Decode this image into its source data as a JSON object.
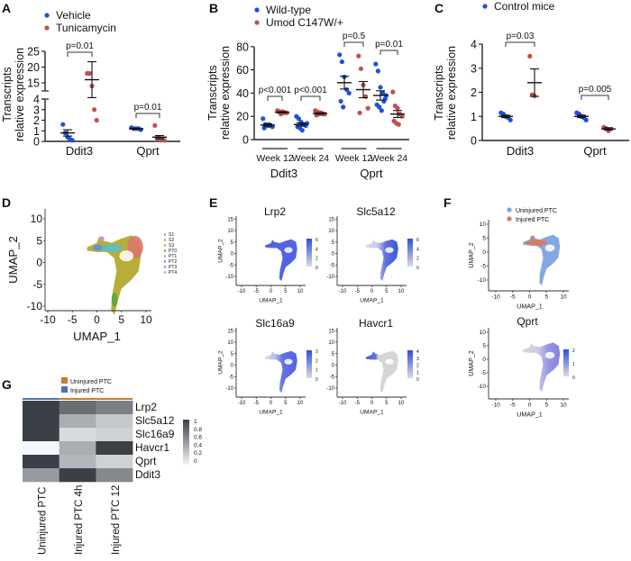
{
  "figure": {
    "panel_labels": [
      "A",
      "B",
      "C",
      "D",
      "E",
      "F",
      "G"
    ],
    "colors": {
      "blue": "#1f4fe0",
      "red": "#c0504d",
      "axis": "#222222"
    }
  },
  "chart_data": [
    {
      "panel": "A",
      "type": "scatter",
      "ylabel": [
        "Transcripts",
        "relative expression"
      ],
      "yticks": [
        0,
        1,
        2,
        3,
        4,
        15,
        20,
        25
      ],
      "axis_break": [
        4,
        12.5
      ],
      "categories": [
        "Ddit3",
        "Qprt"
      ],
      "series": [
        {
          "name": "Vehicle",
          "color": "#1f4fe0",
          "values": [
            [
              1.6,
              0.8,
              0.4,
              0.2,
              0.1
            ],
            [
              1.3,
              1.2,
              1.2,
              1.2,
              1.1
            ]
          ],
          "mean": [
            0.8,
            1.2
          ],
          "sem": [
            0.3,
            0.05
          ]
        },
        {
          "name": "Tunicamycin",
          "color": "#c0504d",
          "values": [
            [
              18,
              18,
              14,
              3,
              2
            ],
            [
              1.5,
              0.3,
              0.2,
              0.2,
              0.1
            ]
          ],
          "mean": [
            16,
            0.4
          ],
          "sem": [
            5.7,
            0.15
          ]
        }
      ],
      "pvalues": [
        "p=0.01",
        "p=0.01"
      ]
    },
    {
      "panel": "B",
      "type": "scatter",
      "ylabel": [
        "Transcripts",
        "relative expression"
      ],
      "yticks": [
        0,
        20,
        40,
        60,
        80
      ],
      "ylim": [
        0,
        80
      ],
      "categories": [
        "Ddit3",
        "Qprt"
      ],
      "subcategories": [
        "Week 12",
        "Week 24",
        "Week 12",
        "Week 24"
      ],
      "series": [
        {
          "name": "Wild-type",
          "color": "#1f4fe0",
          "values": [
            [
              18,
              13,
              12,
              12,
              11,
              10,
              12,
              13
            ],
            [
              20,
              18,
              15,
              13,
              12,
              11,
              10,
              8,
              13,
              14
            ],
            [
              73,
              67,
              54,
              43,
              40,
              33,
              28
            ],
            [
              65,
              59,
              45,
              40,
              35,
              30,
              28,
              25,
              33,
              38
            ]
          ],
          "mean": [
            12.5,
            13,
            49,
            38
          ],
          "sem": [
            1,
            1.3,
            5.5,
            4
          ]
        },
        {
          "name": "Umod C147W/+",
          "color": "#c0504d",
          "values": [
            [
              25,
              24,
              24,
              23,
              23,
              24,
              22,
              24
            ],
            [
              25,
              24,
              23,
              22,
              22,
              21,
              22,
              23
            ],
            [
              72,
              61,
              47,
              37,
              27,
              23
            ],
            [
              41,
              29,
              27,
              22,
              20,
              16,
              14,
              13
            ]
          ],
          "mean": [
            23.5,
            22.5,
            43,
            22
          ],
          "sem": [
            0.5,
            0.6,
            7,
            3
          ]
        }
      ],
      "pvalues": [
        "p<0.001",
        "p<0.001",
        "p=0.5",
        "p=0.01"
      ]
    },
    {
      "panel": "C",
      "type": "scatter",
      "ylabel": [
        "Transcripts",
        "relative expression"
      ],
      "yticks": [
        0,
        1,
        2,
        3,
        4
      ],
      "ylim": [
        0,
        4
      ],
      "categories": [
        "Ddit3",
        "Qprt"
      ],
      "series": [
        {
          "name": "Control mice",
          "color": "#1f4fe0",
          "values": [
            [
              1.15,
              1.1,
              1.0,
              0.95,
              0.85
            ],
            [
              1.15,
              1.1,
              1.0,
              0.95,
              0.85
            ]
          ],
          "mean": [
            1.0,
            1.0
          ],
          "sem": [
            0.05,
            0.05
          ]
        },
        {
          "color": "#c0504d",
          "values": [
            [
              3.5,
              1.9,
              1.85
            ],
            [
              0.55,
              0.5,
              0.4
            ]
          ],
          "mean": [
            2.4,
            0.48
          ],
          "sem": [
            0.57,
            0.05
          ]
        }
      ],
      "pvalues": [
        "p=0.03",
        "p=0.005"
      ]
    },
    {
      "panel": "D",
      "type": "scatter",
      "xlabel": "UMAP_1",
      "ylabel": "UMAP_2",
      "xticks": [
        -10,
        -5,
        0,
        5,
        10
      ],
      "yticks": [
        10,
        5,
        0,
        -5,
        -10
      ],
      "legend": [
        "S1",
        "S2",
        "S3",
        "PT0",
        "PT1",
        "PT2",
        "PT3",
        "PT4"
      ],
      "legend_colors": [
        "#d9786b",
        "#c9a53a",
        "#b5a92e",
        "#5ba83a",
        "#5bbfc9",
        "#5b8fe0",
        "#8a7fe0",
        "#c98ad9"
      ],
      "legend_position": "right"
    },
    {
      "panel": "E",
      "type": "scatter",
      "plots": [
        {
          "title": "Lrp2",
          "colorbar": [
            "6",
            "4",
            "2",
            "0"
          ],
          "ylabel": "UMAP_2",
          "xlabel": "UMAP_1"
        },
        {
          "title": "Slc5a12",
          "colorbar": [
            "6",
            "4",
            "2",
            "0"
          ],
          "ylabel": "",
          "xlabel": "UMAP_1"
        },
        {
          "title": "Slc16a9",
          "colorbar": [
            "3",
            "2",
            "1",
            "0"
          ],
          "ylabel": "UMAP_2",
          "xlabel": "UMAP_1"
        },
        {
          "title": "Havcr1",
          "colorbar": [
            "4",
            "3",
            "2",
            "1",
            "0"
          ],
          "ylabel": "",
          "xlabel": "UMAP_1"
        }
      ],
      "xticks": [
        -10,
        -5,
        0,
        5,
        10
      ],
      "yticks": [
        15,
        10,
        5,
        0,
        -5,
        -10
      ],
      "colorscale": [
        "#d8d8d8",
        "#2f4de0"
      ]
    },
    {
      "panel": "F",
      "type": "scatter",
      "plots": [
        {
          "title": "",
          "legend": [
            "Uninjured PTC",
            "Injured PTC"
          ],
          "legend_colors": [
            "#7fa3e0",
            "#d9785a"
          ],
          "ylabel": "UMAP_2",
          "xlabel": "UMAP_1"
        },
        {
          "title": "Qprt",
          "colorbar": [
            "2",
            "1",
            "0"
          ],
          "ylabel": "UMAP_2",
          "xlabel": "UMAP_1"
        }
      ],
      "xticks": [
        -10,
        -5,
        0,
        5,
        10
      ],
      "yticks": [
        10,
        5,
        0,
        -5,
        -10
      ]
    },
    {
      "panel": "G",
      "type": "heatmap",
      "legend": [
        "Uninjured PTC",
        "Injured PTC"
      ],
      "legend_colors": [
        "#d07a2a",
        "#4a72c4"
      ],
      "columns": [
        "Uninjured PTC",
        "Injured PTC 4h",
        "Injured PTC 12 h"
      ],
      "column_groups": [
        "Injured PTC",
        "Uninjured PTC",
        "Uninjured PTC"
      ],
      "rows": [
        "Lrp2",
        "Slc5a12",
        "Slc16a9",
        "Havcr1",
        "Qprt",
        "Ddit3"
      ],
      "values": [
        [
          1,
          0.75,
          0.65
        ],
        [
          1,
          0.4,
          0.25
        ],
        [
          1,
          0.15,
          0.2
        ],
        [
          0,
          0.4,
          1
        ],
        [
          1,
          0.35,
          0.2
        ],
        [
          0.5,
          1,
          0.6
        ]
      ],
      "colorbar_ticks": [
        "1",
        "0.8",
        "0.6",
        "0.4",
        "0.2",
        "0"
      ],
      "colorscale": [
        "#f4f6f9",
        "#3a4046"
      ]
    }
  ]
}
